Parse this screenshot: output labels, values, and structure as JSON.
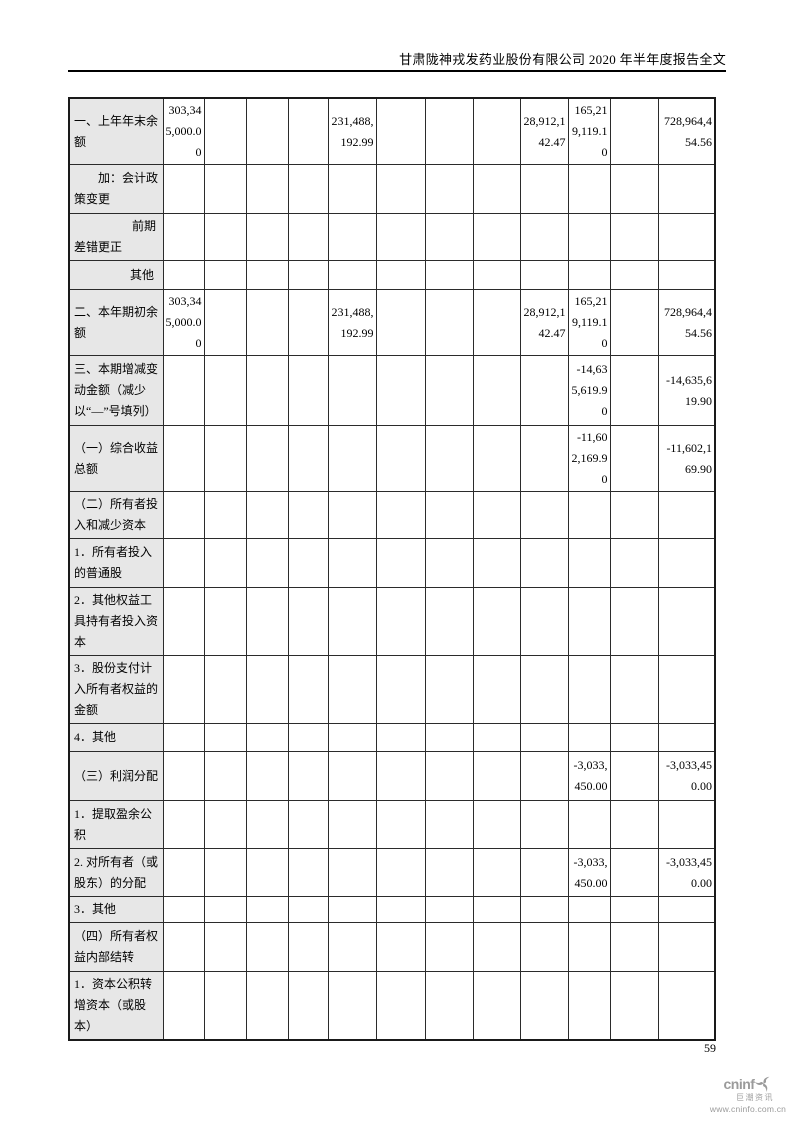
{
  "header": {
    "title": "甘肃陇神戎发药业股份有限公司 2020 年半年度报告全文"
  },
  "table": {
    "rows": [
      {
        "label": "一、上年年末余额",
        "indent": 0,
        "cells": [
          "303,345,000.00",
          "",
          "",
          "",
          "231,488,192.99",
          "",
          "",
          "",
          "28,912,142.47",
          "165,219,119.10",
          "",
          "728,964,454.56"
        ]
      },
      {
        "label": "加：会计政策变更",
        "indent": 24,
        "cells": [
          "",
          "",
          "",
          "",
          "",
          "",
          "",
          "",
          "",
          "",
          "",
          ""
        ]
      },
      {
        "label": "前期差错更正",
        "indent": 58,
        "cells": [
          "",
          "",
          "",
          "",
          "",
          "",
          "",
          "",
          "",
          "",
          "",
          ""
        ]
      },
      {
        "label": "其他",
        "indent": 56,
        "cells": [
          "",
          "",
          "",
          "",
          "",
          "",
          "",
          "",
          "",
          "",
          "",
          ""
        ]
      },
      {
        "label": "二、本年期初余额",
        "indent": 0,
        "cells": [
          "303,345,000.00",
          "",
          "",
          "",
          "231,488,192.99",
          "",
          "",
          "",
          "28,912,142.47",
          "165,219,119.10",
          "",
          "728,964,454.56"
        ]
      },
      {
        "label": "三、本期增减变动金额（减少以“—”号填列）",
        "indent": 0,
        "cells": [
          "",
          "",
          "",
          "",
          "",
          "",
          "",
          "",
          "",
          "-14,635,619.90",
          "",
          "-14,635,619.90"
        ]
      },
      {
        "label": "（一）综合收益总额",
        "indent": 0,
        "cells": [
          "",
          "",
          "",
          "",
          "",
          "",
          "",
          "",
          "",
          "-11,602,169.90",
          "",
          "-11,602,169.90"
        ]
      },
      {
        "label": "（二）所有者投入和减少资本",
        "indent": 0,
        "cells": [
          "",
          "",
          "",
          "",
          "",
          "",
          "",
          "",
          "",
          "",
          "",
          ""
        ]
      },
      {
        "label": "1．所有者投入的普通股",
        "indent": 0,
        "cells": [
          "",
          "",
          "",
          "",
          "",
          "",
          "",
          "",
          "",
          "",
          "",
          ""
        ]
      },
      {
        "label": "2．其他权益工具持有者投入资本",
        "indent": 0,
        "cells": [
          "",
          "",
          "",
          "",
          "",
          "",
          "",
          "",
          "",
          "",
          "",
          ""
        ]
      },
      {
        "label": "3．股份支付计入所有者权益的金额",
        "indent": 0,
        "cells": [
          "",
          "",
          "",
          "",
          "",
          "",
          "",
          "",
          "",
          "",
          "",
          ""
        ]
      },
      {
        "label": "4．其他",
        "indent": 0,
        "cells": [
          "",
          "",
          "",
          "",
          "",
          "",
          "",
          "",
          "",
          "",
          "",
          ""
        ]
      },
      {
        "label": "（三）利润分配",
        "indent": 0,
        "cells": [
          "",
          "",
          "",
          "",
          "",
          "",
          "",
          "",
          "",
          "-3,033,450.00",
          "",
          "-3,033,450.00"
        ]
      },
      {
        "label": "1．提取盈余公积",
        "indent": 0,
        "cells": [
          "",
          "",
          "",
          "",
          "",
          "",
          "",
          "",
          "",
          "",
          "",
          ""
        ]
      },
      {
        "label": "2. 对所有者（或股东）的分配",
        "indent": 0,
        "cells": [
          "",
          "",
          "",
          "",
          "",
          "",
          "",
          "",
          "",
          "-3,033,450.00",
          "",
          "-3,033,450.00"
        ]
      },
      {
        "label": "3．其他",
        "indent": 0,
        "cells": [
          "",
          "",
          "",
          "",
          "",
          "",
          "",
          "",
          "",
          "",
          "",
          ""
        ]
      },
      {
        "label": "（四）所有者权益内部结转",
        "indent": 0,
        "cells": [
          "",
          "",
          "",
          "",
          "",
          "",
          "",
          "",
          "",
          "",
          "",
          ""
        ]
      },
      {
        "label": "1．资本公积转增资本（或股本）",
        "indent": 0,
        "cells": [
          "",
          "",
          "",
          "",
          "",
          "",
          "",
          "",
          "",
          "",
          "",
          ""
        ]
      }
    ]
  },
  "footer": {
    "page_number": "59",
    "logo": {
      "brand": "cninf",
      "chinese": "巨潮资讯",
      "url": "www.cninfo.com.cn"
    }
  },
  "colors": {
    "label_cell_bg": "#e7e7e7",
    "grid_line": "#000000",
    "logo_gray": "#9b9b9b"
  }
}
